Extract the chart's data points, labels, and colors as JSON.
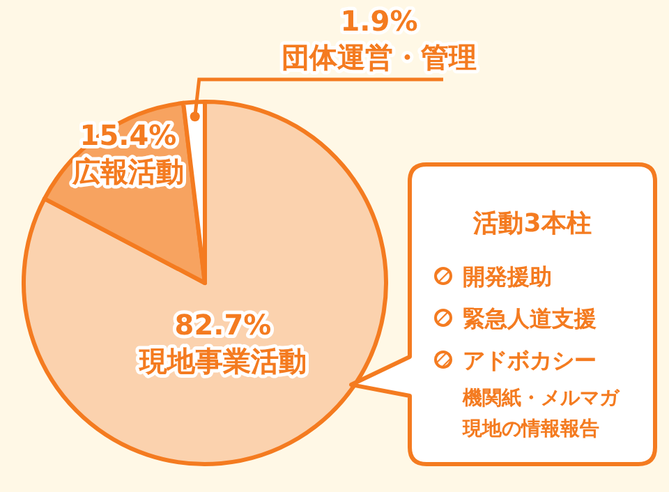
{
  "chart_data": {
    "type": "pie",
    "categories": [
      "現地事業活動",
      "広報活動",
      "団体運営・管理"
    ],
    "values": [
      82.7,
      15.4,
      1.9
    ],
    "colors": [
      "#fbd2ae",
      "#f7a360",
      "#ffffff"
    ],
    "value_labels": [
      "82.7%",
      "15.4%",
      "1.9%"
    ],
    "legend": false,
    "annotations": [
      "活動3本柱",
      "開発援助",
      "緊急人道支援",
      "アドボカシー",
      "機関紙・メルマガ",
      "現地の情報報告"
    ]
  }
}
